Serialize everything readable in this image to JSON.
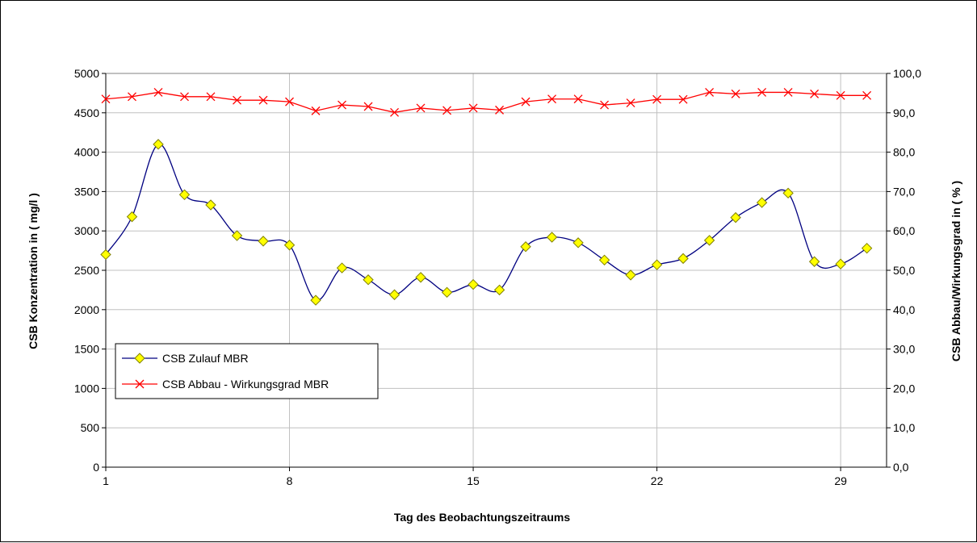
{
  "chart_data": {
    "type": "line",
    "xlabel": "Tag des Beobachtungszeitraums",
    "ylabel": "CSB Konzentration in ( mg/l )",
    "y2label": "CSB Abbau/Wirkungsgrad in ( % )",
    "x": [
      1,
      2,
      3,
      4,
      5,
      6,
      7,
      8,
      9,
      10,
      11,
      12,
      13,
      14,
      15,
      16,
      17,
      18,
      19,
      20,
      21,
      22,
      23,
      24,
      25,
      26,
      27,
      28,
      29,
      30
    ],
    "x_ticks": [
      "1",
      "8",
      "15",
      "22",
      "29"
    ],
    "y_ticks": [
      "0",
      "500",
      "1000",
      "1500",
      "2000",
      "2500",
      "3000",
      "3500",
      "4000",
      "4500",
      "5000"
    ],
    "y2_ticks": [
      "0,0",
      "10,0",
      "20,0",
      "30,0",
      "40,0",
      "50,0",
      "60,0",
      "70,0",
      "80,0",
      "90,0",
      "100,0"
    ],
    "ylim": [
      0,
      5000
    ],
    "y2lim": [
      0,
      100
    ],
    "grid": true,
    "legend_position": "bottom-left",
    "series": [
      {
        "name": "CSB Zulauf MBR",
        "axis": "left",
        "color": "#000080",
        "marker": "diamond",
        "marker_color": "#ffff00",
        "values": [
          2700,
          3180,
          4100,
          3460,
          3330,
          2940,
          2870,
          2820,
          2120,
          2530,
          2380,
          2190,
          2410,
          2220,
          2320,
          2250,
          2800,
          2920,
          2850,
          2630,
          2440,
          2570,
          2650,
          2880,
          3170,
          3360,
          3480,
          2610,
          2580,
          2780
        ]
      },
      {
        "name": "CSB Abbau - Wirkungsgrad MBR",
        "axis": "right",
        "color": "#ff0000",
        "marker": "x",
        "values": [
          93.5,
          94.1,
          95.2,
          94.1,
          94.1,
          93.2,
          93.2,
          92.8,
          90.5,
          92.0,
          91.6,
          90.1,
          91.2,
          90.6,
          91.2,
          90.7,
          92.8,
          93.5,
          93.5,
          92.0,
          92.5,
          93.4,
          93.4,
          95.2,
          94.8,
          95.2,
          95.2,
          94.8,
          94.4,
          94.4
        ]
      }
    ]
  }
}
